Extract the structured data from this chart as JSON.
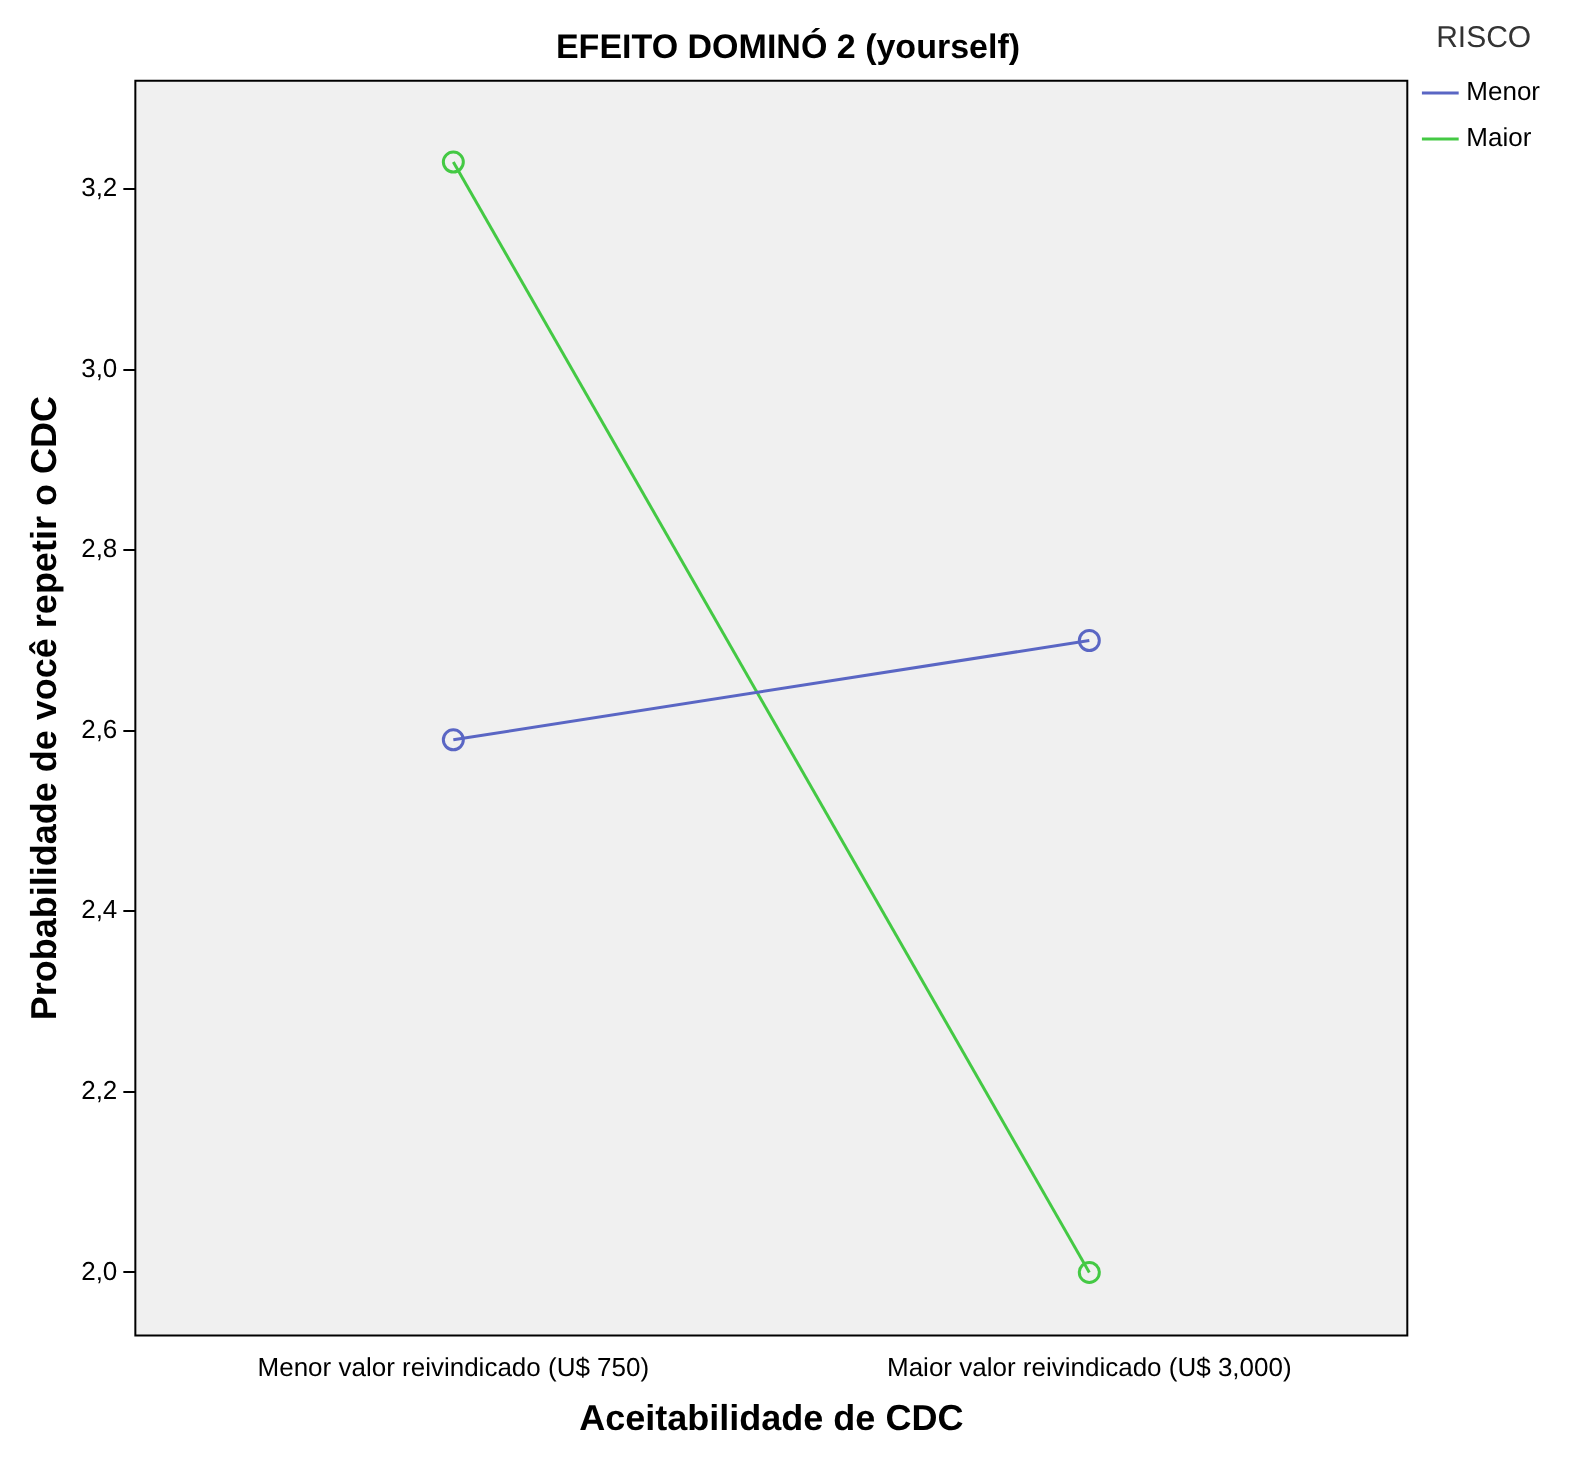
{
  "chart_data": {
    "type": "line",
    "title": "EFEITO DOMINÓ 2 (yourself)",
    "xlabel": "Aceitabilidade de CDC",
    "ylabel": "Probabilidade de você repetir o CDC",
    "legend_title": "RISCO",
    "legend": "right",
    "categories": [
      "Menor valor reivindicado (U$ 750)",
      "Maior valor reivindicado (U$ 3,000)"
    ],
    "series": [
      {
        "name": "Menor",
        "color": "#5a66c4",
        "values": [
          2.59,
          2.7
        ]
      },
      {
        "name": "Maior",
        "color": "#44c944",
        "values": [
          3.23,
          2.0
        ]
      }
    ],
    "ylim": [
      1.93,
      3.32
    ],
    "yticks": [
      {
        "value": 2.0,
        "label": "2,0"
      },
      {
        "value": 2.2,
        "label": "2,2"
      },
      {
        "value": 2.4,
        "label": "2,4"
      },
      {
        "value": 2.6,
        "label": "2,6"
      },
      {
        "value": 2.8,
        "label": "2,8"
      },
      {
        "value": 3.0,
        "label": "3,0"
      },
      {
        "value": 3.2,
        "label": "3,2"
      }
    ],
    "grid": false,
    "marker": "circle",
    "line_style": "solid"
  }
}
